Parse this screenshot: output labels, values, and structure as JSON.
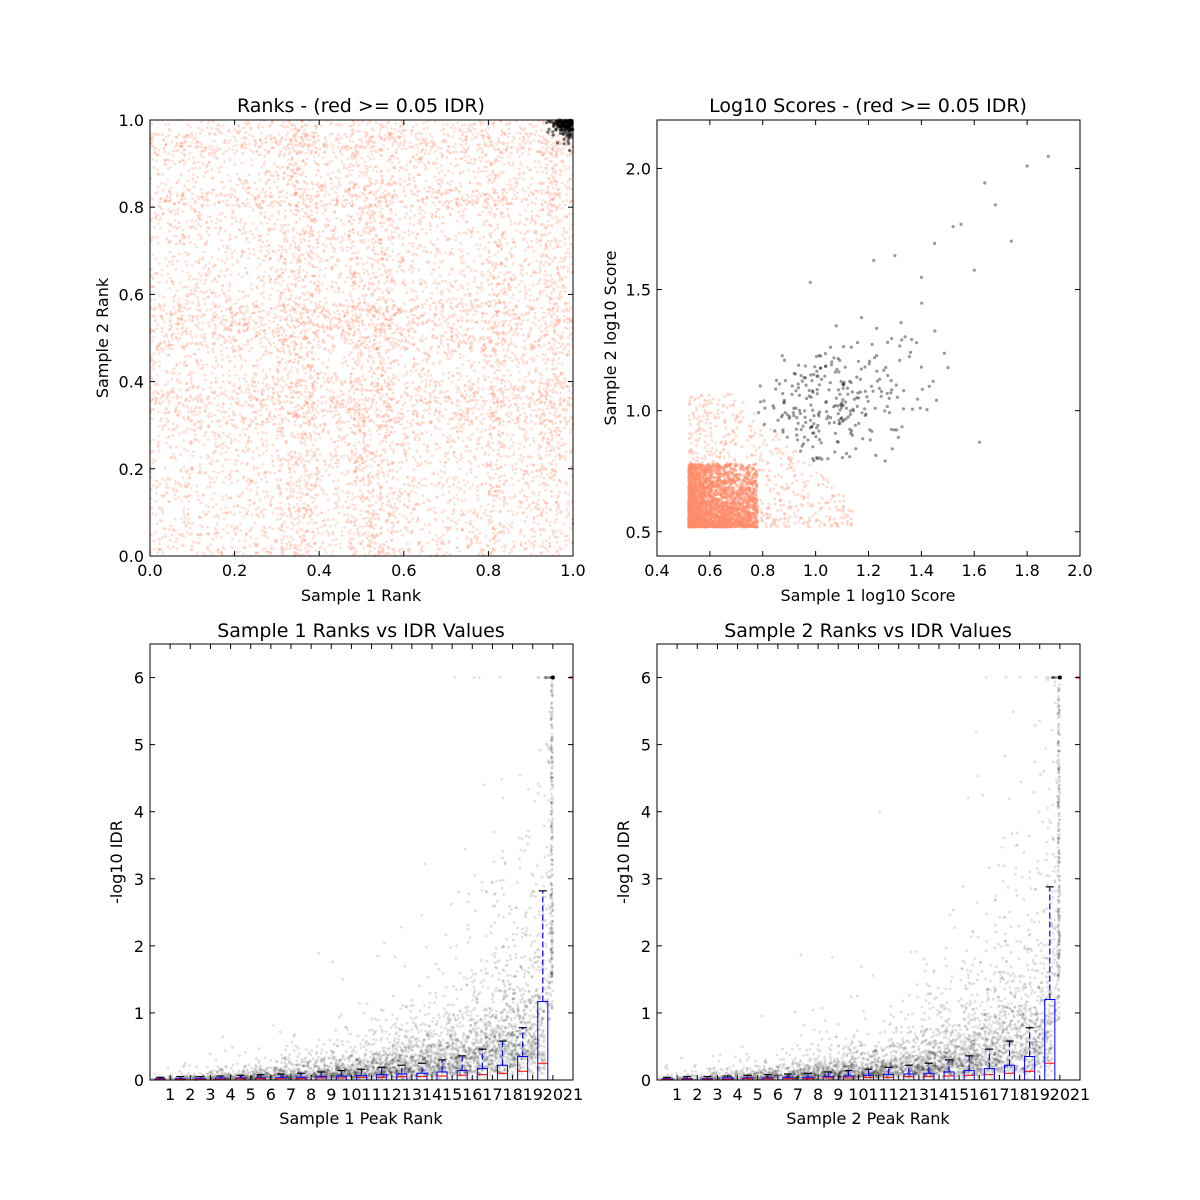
{
  "chart_data": [
    {
      "id": "ranks",
      "type": "scatter",
      "title": "Ranks - (red >= 0.05 IDR)",
      "xlabel": "Sample 1 Rank",
      "ylabel": "Sample 2 Rank",
      "xlim": [
        0.0,
        1.0
      ],
      "ylim": [
        0.0,
        1.0
      ],
      "xticks": [
        "0.0",
        "0.2",
        "0.4",
        "0.6",
        "0.8",
        "1.0"
      ],
      "yticks": [
        "0.0",
        "0.2",
        "0.4",
        "0.6",
        "0.8",
        "1.0"
      ],
      "grid": false,
      "colors": {
        "pass": "#ff8c69",
        "fail": "#000000"
      },
      "generator": "dense-uniform-rank-scatter",
      "point_count_pass": 9000,
      "point_count_fail": 160,
      "fail_region": {
        "x": [
          0.93,
          1.0
        ],
        "y": [
          0.93,
          1.0
        ]
      },
      "dense_bands": [
        [
          0.3,
          0.4
        ],
        [
          0.47,
          0.58
        ],
        [
          0.8,
          0.84
        ],
        [
          0.92,
          0.97
        ]
      ]
    },
    {
      "id": "scores",
      "type": "scatter",
      "title": "Log10 Scores - (red >= 0.05 IDR)",
      "xlabel": "Sample 1 log10 Score",
      "ylabel": "Sample 2 log10 Score",
      "xlim": [
        0.4,
        2.0
      ],
      "ylim": [
        0.4,
        2.2
      ],
      "xticks": [
        "0.4",
        "0.6",
        "0.8",
        "1.0",
        "1.2",
        "1.4",
        "1.6",
        "1.8",
        "2.0"
      ],
      "yticks": [
        "0.5",
        "1.0",
        "1.5",
        "2.0"
      ],
      "yticks_values": [
        0.5,
        1.0,
        1.5,
        2.0
      ],
      "grid": false,
      "colors": {
        "pass": "#ff8c69",
        "fail": "#000000"
      },
      "pass_core": {
        "x": [
          0.52,
          0.78
        ],
        "y": [
          0.52,
          0.78
        ]
      },
      "fail_cloud_center": [
        1.05,
        1.02
      ],
      "fail_points_sample": [
        [
          1.88,
          2.05
        ],
        [
          1.8,
          2.01
        ],
        [
          1.64,
          1.94
        ],
        [
          1.68,
          1.85
        ],
        [
          1.55,
          1.77
        ],
        [
          1.52,
          1.76
        ],
        [
          1.74,
          1.7
        ],
        [
          1.45,
          1.69
        ],
        [
          1.6,
          1.58
        ],
        [
          1.4,
          1.55
        ],
        [
          1.22,
          1.62
        ],
        [
          1.3,
          1.64
        ],
        [
          0.98,
          1.53
        ],
        [
          1.43,
          1.1
        ],
        [
          1.62,
          0.87
        ],
        [
          1.4,
          1.18
        ]
      ]
    },
    {
      "id": "idr1",
      "type": "scatter",
      "title": "Sample 1 Ranks vs IDR Values",
      "xlabel": "Sample 1 Peak Rank",
      "ylabel": "-log10 IDR",
      "xlim": [
        0,
        21
      ],
      "ylim": [
        0,
        6.5
      ],
      "xticks": [
        "1",
        "2",
        "3",
        "4",
        "5",
        "6",
        "7",
        "8",
        "9",
        "10",
        "11",
        "12",
        "13",
        "14",
        "15",
        "16",
        "17",
        "18",
        "19",
        "20",
        "21"
      ],
      "yticks": [
        "0",
        "1",
        "2",
        "3",
        "4",
        "5",
        "6"
      ],
      "box_medians": [
        0.01,
        0.01,
        0.01,
        0.01,
        0.02,
        0.02,
        0.02,
        0.02,
        0.03,
        0.03,
        0.04,
        0.04,
        0.05,
        0.05,
        0.06,
        0.07,
        0.08,
        0.1,
        0.13,
        0.25
      ],
      "box_q3": [
        0.02,
        0.02,
        0.02,
        0.03,
        0.03,
        0.03,
        0.04,
        0.04,
        0.05,
        0.06,
        0.07,
        0.08,
        0.09,
        0.1,
        0.12,
        0.14,
        0.17,
        0.22,
        0.35,
        1.17
      ],
      "whisker_top": [
        0.04,
        0.05,
        0.05,
        0.06,
        0.07,
        0.08,
        0.09,
        0.1,
        0.12,
        0.14,
        0.16,
        0.19,
        0.22,
        0.25,
        0.3,
        0.36,
        0.46,
        0.58,
        0.78,
        2.82
      ],
      "max_value": 6.0,
      "colors": {
        "points": "#000000",
        "box": "#0000ff",
        "median": "#ff0000"
      }
    },
    {
      "id": "idr2",
      "type": "scatter",
      "title": "Sample 2 Ranks vs IDR Values",
      "xlabel": "Sample 2 Peak Rank",
      "ylabel": "-log10 IDR",
      "xlim": [
        0,
        21
      ],
      "ylim": [
        0,
        6.5
      ],
      "xticks": [
        "1",
        "2",
        "3",
        "4",
        "5",
        "6",
        "7",
        "8",
        "9",
        "10",
        "11",
        "12",
        "13",
        "14",
        "15",
        "16",
        "17",
        "18",
        "19",
        "20",
        "21"
      ],
      "yticks": [
        "0",
        "1",
        "2",
        "3",
        "4",
        "5",
        "6"
      ],
      "box_medians": [
        0.01,
        0.01,
        0.01,
        0.01,
        0.02,
        0.02,
        0.02,
        0.02,
        0.03,
        0.03,
        0.04,
        0.04,
        0.05,
        0.05,
        0.06,
        0.07,
        0.08,
        0.1,
        0.13,
        0.25
      ],
      "box_q3": [
        0.02,
        0.02,
        0.02,
        0.03,
        0.03,
        0.03,
        0.04,
        0.04,
        0.05,
        0.06,
        0.07,
        0.08,
        0.09,
        0.1,
        0.12,
        0.14,
        0.17,
        0.22,
        0.35,
        1.2
      ],
      "whisker_top": [
        0.04,
        0.05,
        0.05,
        0.06,
        0.07,
        0.08,
        0.09,
        0.1,
        0.12,
        0.14,
        0.16,
        0.19,
        0.22,
        0.25,
        0.3,
        0.36,
        0.46,
        0.58,
        0.78,
        2.88
      ],
      "max_value": 6.0,
      "colors": {
        "points": "#000000",
        "box": "#0000ff",
        "median": "#ff0000"
      }
    }
  ]
}
